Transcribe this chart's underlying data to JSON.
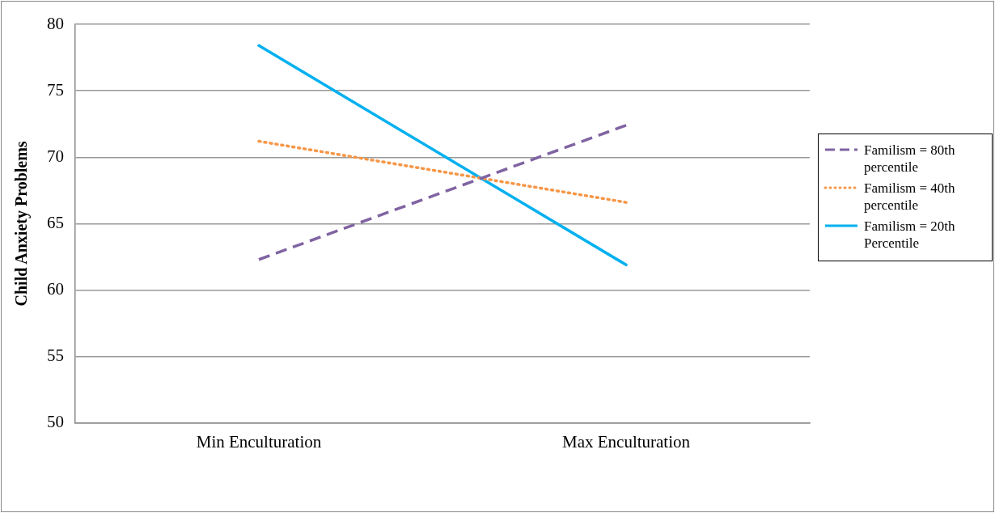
{
  "chart_data": {
    "type": "line",
    "ylabel": "Child Anxiety Problems",
    "categories": [
      "Min Enculturation",
      "Max Enculturation"
    ],
    "series": [
      {
        "name": "Familism = 80th percentile",
        "color": "#8064a2",
        "values": [
          62.3,
          72.4
        ],
        "line_style": "dashed"
      },
      {
        "name": "Familism = 40th percentile",
        "color": "#f79646",
        "values": [
          71.2,
          66.6
        ],
        "line_style": "dotted"
      },
      {
        "name": "Familism = 20th Percentile",
        "color": "#00b0f0",
        "values": [
          78.4,
          61.9
        ],
        "line_style": "solid"
      }
    ],
    "ylim": [
      50,
      80
    ],
    "yticks": [
      50,
      55,
      60,
      65,
      70,
      75,
      80
    ],
    "grid": "y",
    "legend": "right",
    "marker": "none"
  }
}
